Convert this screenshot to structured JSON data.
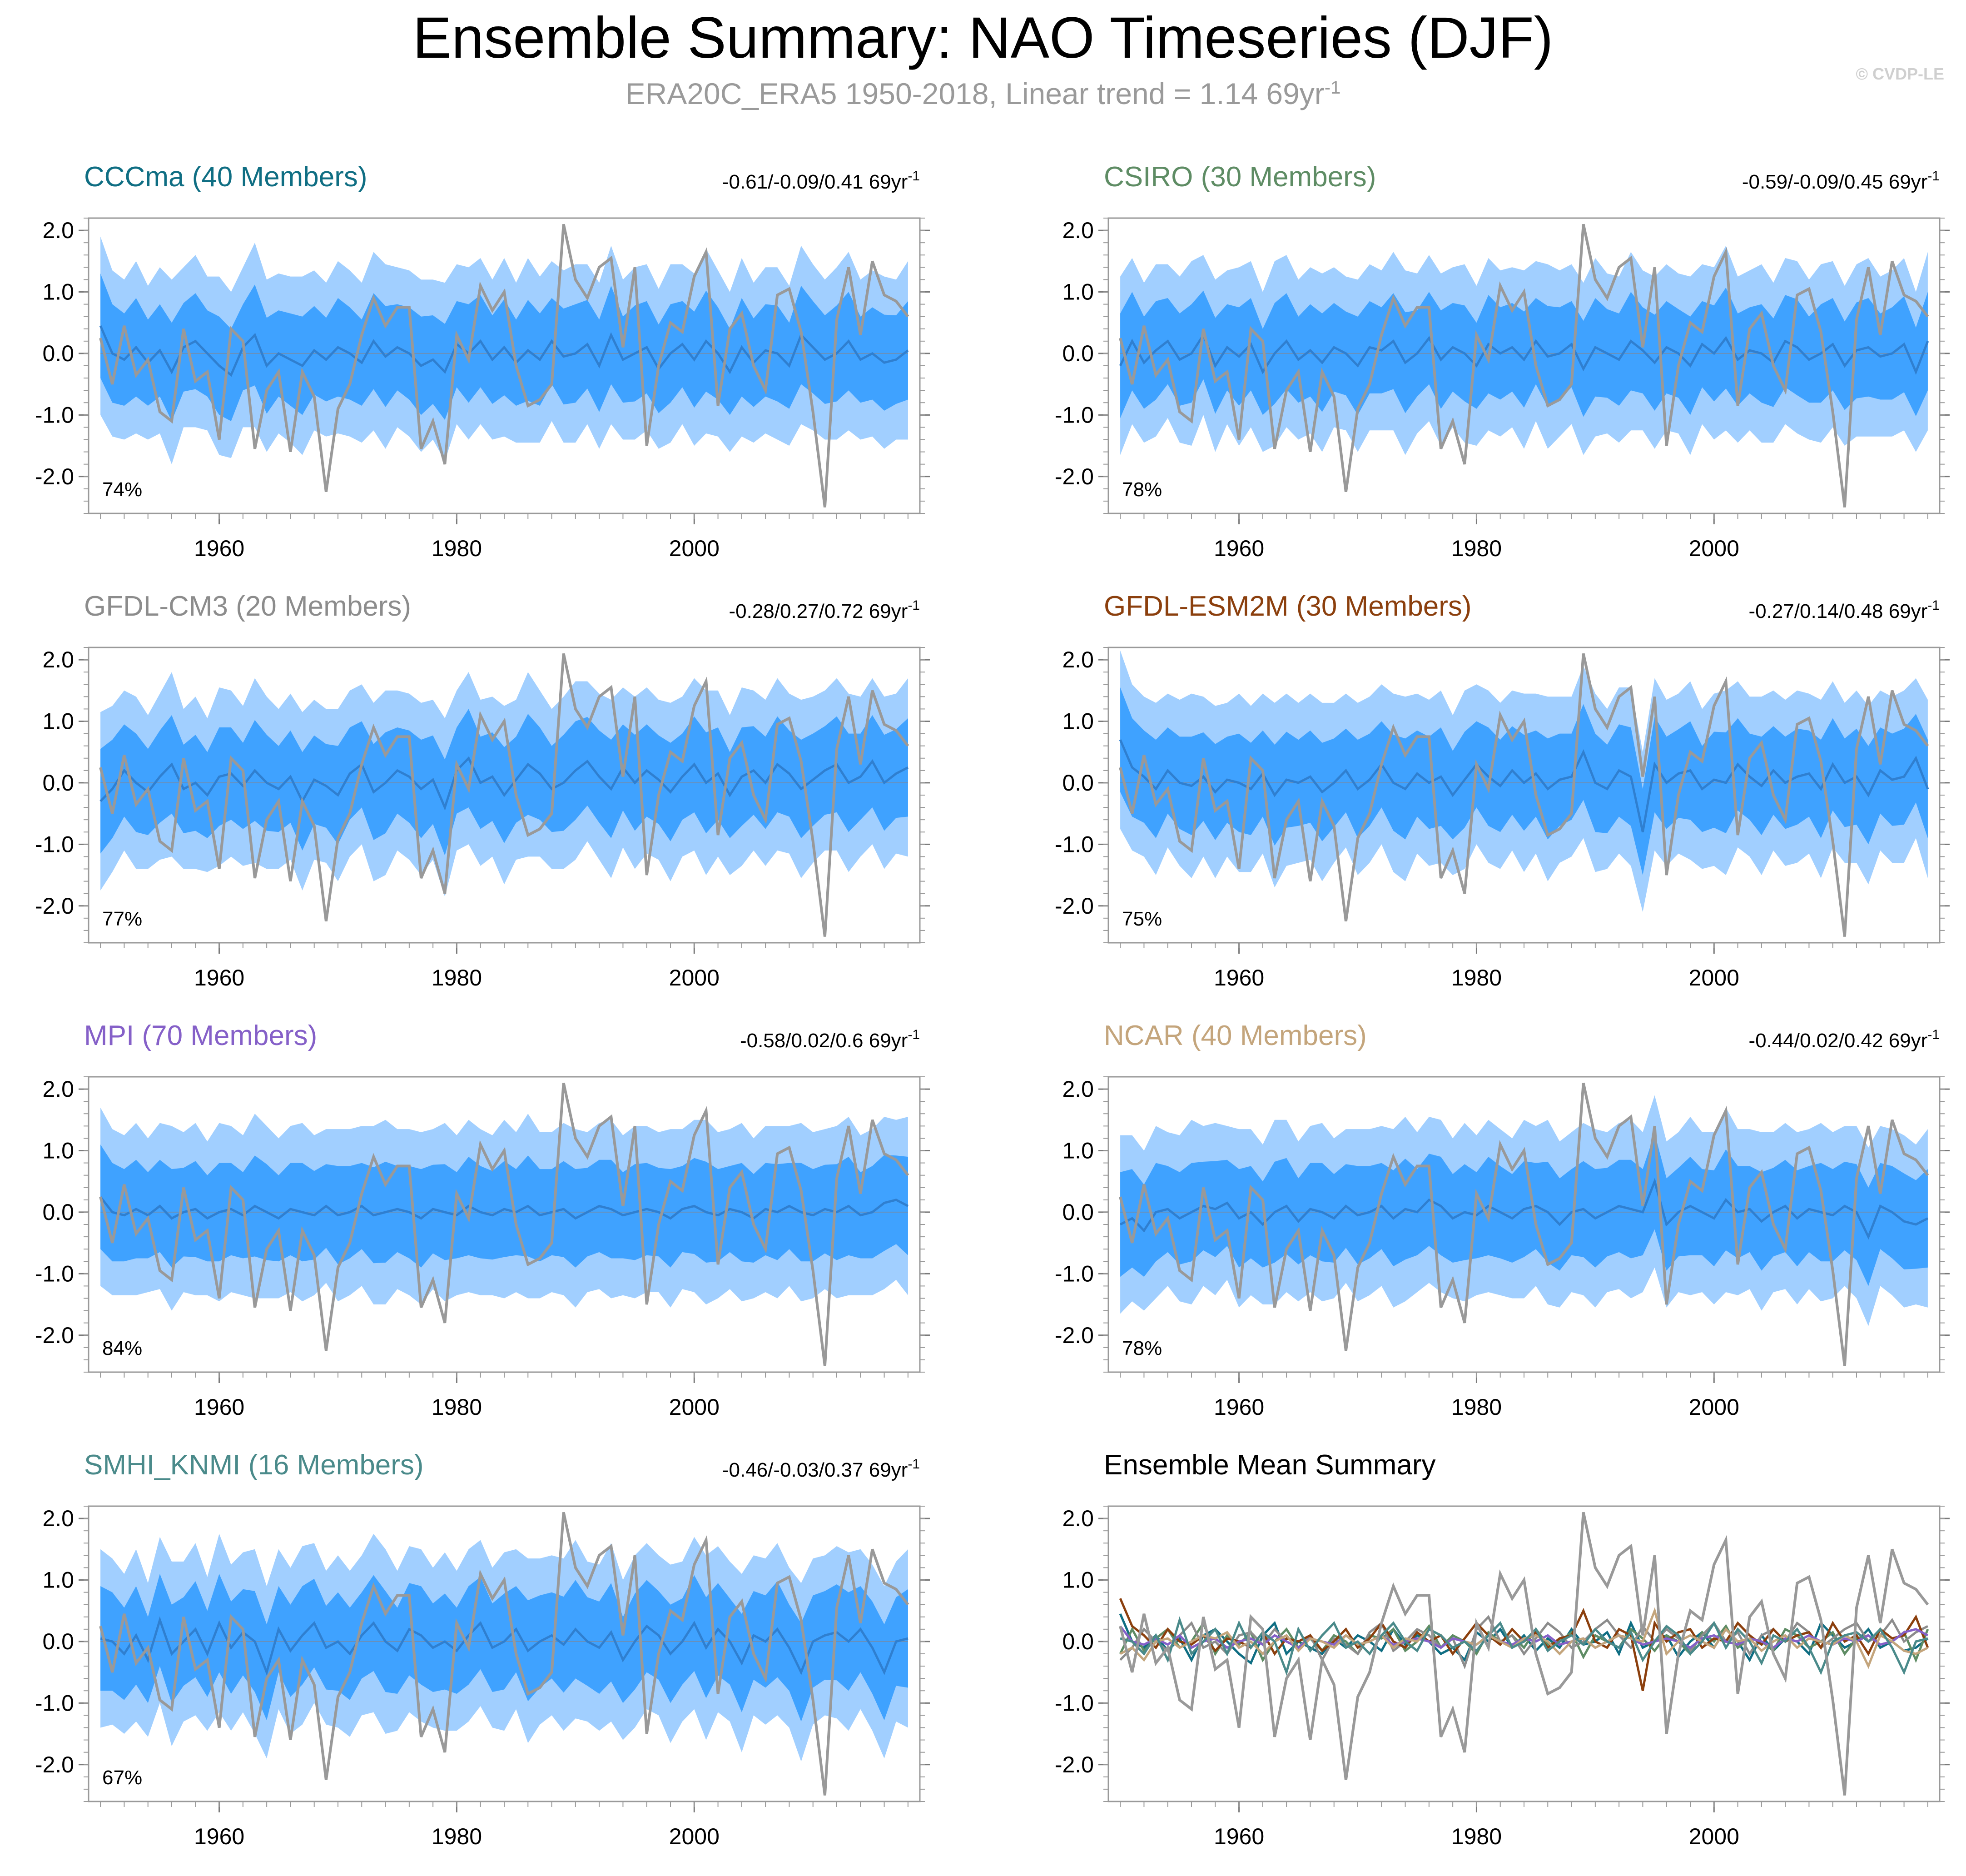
{
  "title": "Ensemble Summary: NAO Timeseries (DJF)",
  "subtitle": {
    "text": "ERA20C_ERA5 1950-2018, Linear trend = 1.14 69yr",
    "sup": "-1"
  },
  "watermark": "© CVDP-LE",
  "colors": {
    "inner_band": "#3fa2ff",
    "outer_band": "#a1cfff",
    "mean_line": "#2f7fd0",
    "obs_line": "#999999"
  },
  "chart_data": [
    {
      "type": "line",
      "title": "CCCma (40 Members)",
      "title_color": "#0f6e83",
      "stat": "-0.61/-0.09/0.41 69yr",
      "stat_sup": "-1",
      "percent": "74%",
      "xlim": [
        1949,
        2019
      ],
      "ylim": [
        -2.6,
        2.2
      ],
      "xticks": [
        1960,
        1980,
        2000
      ],
      "xtick_labels": [
        "1960",
        "1980",
        "2000"
      ],
      "yticks": [
        2.0,
        1.0,
        0.0,
        -1.0,
        -2.0
      ],
      "ytick_labels": [
        "2.0",
        "1.0",
        "0.0",
        "-1.0",
        "-2.0"
      ]
    },
    {
      "type": "line",
      "title": "CSIRO (30 Members)",
      "title_color": "#5e8c64",
      "stat": "-0.59/-0.09/0.45 69yr",
      "stat_sup": "-1",
      "percent": "78%",
      "xlim": [
        1949,
        2019
      ],
      "ylim": [
        -2.6,
        2.2
      ],
      "xticks": [
        1960,
        1980,
        2000
      ],
      "xtick_labels": [
        "1960",
        "1980",
        "2000"
      ],
      "yticks": [
        2.0,
        1.0,
        0.0,
        -1.0,
        -2.0
      ],
      "ytick_labels": [
        "2.0",
        "1.0",
        "0.0",
        "-1.0",
        "-2.0"
      ]
    },
    {
      "type": "line",
      "title": "GFDL-CM3 (20 Members)",
      "title_color": "#8c8c8c",
      "stat": "-0.28/0.27/0.72 69yr",
      "stat_sup": "-1",
      "percent": "77%",
      "xlim": [
        1949,
        2019
      ],
      "ylim": [
        -2.6,
        2.2
      ],
      "xticks": [
        1960,
        1980,
        2000
      ],
      "xtick_labels": [
        "1960",
        "1980",
        "2000"
      ],
      "yticks": [
        2.0,
        1.0,
        0.0,
        -1.0,
        -2.0
      ],
      "ytick_labels": [
        "2.0",
        "1.0",
        "0.0",
        "-1.0",
        "-2.0"
      ]
    },
    {
      "type": "line",
      "title": "GFDL-ESM2M (30 Members)",
      "title_color": "#8b3f0d",
      "stat": "-0.27/0.14/0.48 69yr",
      "stat_sup": "-1",
      "percent": "75%",
      "xlim": [
        1949,
        2019
      ],
      "ylim": [
        -2.6,
        2.2
      ],
      "xticks": [
        1960,
        1980,
        2000
      ],
      "xtick_labels": [
        "1960",
        "1980",
        "2000"
      ],
      "yticks": [
        2.0,
        1.0,
        0.0,
        -1.0,
        -2.0
      ],
      "ytick_labels": [
        "2.0",
        "1.0",
        "0.0",
        "-1.0",
        "-2.0"
      ]
    },
    {
      "type": "line",
      "title": "MPI (70 Members)",
      "title_color": "#8560c8",
      "stat": "-0.58/0.02/0.6 69yr",
      "stat_sup": "-1",
      "percent": "84%",
      "xlim": [
        1949,
        2019
      ],
      "ylim": [
        -2.6,
        2.2
      ],
      "xticks": [
        1960,
        1980,
        2000
      ],
      "xtick_labels": [
        "1960",
        "1980",
        "2000"
      ],
      "yticks": [
        2.0,
        1.0,
        0.0,
        -1.0,
        -2.0
      ],
      "ytick_labels": [
        "2.0",
        "1.0",
        "0.0",
        "-1.0",
        "-2.0"
      ]
    },
    {
      "type": "line",
      "title": "NCAR (40 Members)",
      "title_color": "#c4a57c",
      "stat": "-0.44/0.02/0.42 69yr",
      "stat_sup": "-1",
      "percent": "78%",
      "xlim": [
        1949,
        2019
      ],
      "ylim": [
        -2.6,
        2.2
      ],
      "xticks": [
        1960,
        1980,
        2000
      ],
      "xtick_labels": [
        "1960",
        "1980",
        "2000"
      ],
      "yticks": [
        2.0,
        1.0,
        0.0,
        -1.0,
        -2.0
      ],
      "ytick_labels": [
        "2.0",
        "1.0",
        "0.0",
        "-1.0",
        "-2.0"
      ]
    },
    {
      "type": "line",
      "title": "SMHI_KNMI (16 Members)",
      "title_color": "#4a8a8a",
      "stat": "-0.46/-0.03/0.37 69yr",
      "stat_sup": "-1",
      "percent": "67%",
      "xlim": [
        1949,
        2019
      ],
      "ylim": [
        -2.6,
        2.2
      ],
      "xticks": [
        1960,
        1980,
        2000
      ],
      "xtick_labels": [
        "1960",
        "1980",
        "2000"
      ],
      "yticks": [
        2.0,
        1.0,
        0.0,
        -1.0,
        -2.0
      ],
      "ytick_labels": [
        "2.0",
        "1.0",
        "0.0",
        "-1.0",
        "-2.0"
      ]
    },
    {
      "type": "line",
      "title": "Ensemble Mean Summary",
      "title_color": "#000000",
      "stat": "",
      "stat_sup": "",
      "percent": "",
      "xlim": [
        1949,
        2019
      ],
      "ylim": [
        -2.6,
        2.2
      ],
      "xticks": [
        1960,
        1980,
        2000
      ],
      "xtick_labels": [
        "1960",
        "1980",
        "2000"
      ],
      "yticks": [
        2.0,
        1.0,
        0.0,
        -1.0,
        -2.0
      ],
      "ytick_labels": [
        "2.0",
        "1.0",
        "0.0",
        "-1.0",
        "-2.0"
      ],
      "summary": true,
      "summary_colors": [
        "#0f6e83",
        "#5e8c64",
        "#8c8c8c",
        "#8b3f0d",
        "#8560c8",
        "#c4a57c",
        "#4a8a8a"
      ]
    }
  ],
  "observed": {
    "years": [
      1950,
      1951,
      1952,
      1953,
      1954,
      1955,
      1956,
      1957,
      1958,
      1959,
      1960,
      1961,
      1962,
      1963,
      1964,
      1965,
      1966,
      1967,
      1968,
      1969,
      1970,
      1971,
      1972,
      1973,
      1974,
      1975,
      1976,
      1977,
      1978,
      1979,
      1980,
      1981,
      1982,
      1983,
      1984,
      1985,
      1986,
      1987,
      1988,
      1989,
      1990,
      1991,
      1992,
      1993,
      1994,
      1995,
      1996,
      1997,
      1998,
      1999,
      2000,
      2001,
      2002,
      2003,
      2004,
      2005,
      2006,
      2007,
      2008,
      2009,
      2010,
      2011,
      2012,
      2013,
      2014,
      2015,
      2016,
      2017,
      2018
    ],
    "values": [
      0.25,
      -0.5,
      0.45,
      -0.35,
      -0.1,
      -0.95,
      -1.1,
      0.4,
      -0.45,
      -0.3,
      -1.4,
      0.4,
      0.2,
      -1.55,
      -0.6,
      -0.3,
      -1.6,
      -0.3,
      -0.7,
      -2.25,
      -0.9,
      -0.5,
      0.3,
      0.9,
      0.45,
      0.75,
      0.75,
      -1.55,
      -1.1,
      -1.8,
      0.3,
      -0.1,
      1.1,
      0.7,
      1.0,
      -0.2,
      -0.85,
      -0.75,
      -0.5,
      2.1,
      1.2,
      0.9,
      1.4,
      1.55,
      0.1,
      1.4,
      -1.5,
      -0.2,
      0.5,
      0.35,
      1.25,
      1.65,
      -0.85,
      0.4,
      0.65,
      -0.2,
      -0.6,
      0.95,
      1.05,
      0.35,
      -0.95,
      -2.5,
      0.55,
      1.4,
      0.3,
      1.5,
      0.95,
      0.85,
      0.6
    ]
  },
  "ensemble": {
    "mean": [
      [
        0.45,
        0.0,
        -0.1,
        0.1,
        -0.15,
        0.05,
        -0.3,
        0.1,
        0.2,
        0.0,
        -0.2,
        -0.35,
        0.1,
        0.3,
        -0.2,
        0.0,
        -0.1,
        -0.2,
        0.05,
        -0.1,
        0.1,
        0.0,
        -0.15,
        0.2,
        -0.05,
        0.1,
        0.0,
        -0.2,
        -0.1,
        -0.3,
        0.15,
        0.0,
        0.2,
        -0.1,
        0.1,
        -0.15,
        0.05,
        -0.1,
        0.2,
        -0.05,
        0.0,
        0.15,
        -0.2,
        0.3,
        -0.1,
        0.0,
        0.1,
        -0.25,
        0.0,
        0.15,
        -0.1,
        0.2,
        0.0,
        -0.3,
        0.1,
        -0.15,
        0.05,
        0.0,
        -0.2,
        0.3,
        0.1,
        -0.1,
        0.0,
        0.2,
        -0.1,
        0.0,
        -0.15,
        -0.1,
        0.05
      ],
      [
        -0.2,
        0.2,
        -0.15,
        0.05,
        0.2,
        -0.1,
        0.0,
        0.3,
        -0.2,
        0.1,
        -0.05,
        0.15,
        -0.3,
        0.0,
        0.2,
        -0.1,
        0.05,
        -0.15,
        0.1,
        0.0,
        -0.2,
        0.1,
        0.05,
        0.2,
        -0.15,
        0.0,
        0.25,
        -0.1,
        0.1,
        0.0,
        -0.2,
        0.15,
        0.0,
        0.1,
        -0.1,
        0.2,
        -0.05,
        0.0,
        0.15,
        -0.25,
        0.1,
        0.0,
        -0.1,
        0.2,
        0.05,
        -0.15,
        0.1,
        0.0,
        -0.2,
        0.15,
        0.0,
        0.25,
        -0.1,
        0.05,
        0.0,
        -0.15,
        0.2,
        0.1,
        -0.1,
        0.0,
        0.15,
        -0.2,
        0.05,
        0.1,
        -0.05,
        0.0,
        0.15,
        -0.3,
        0.2
      ],
      [
        -0.3,
        -0.1,
        0.2,
        0.0,
        -0.15,
        0.1,
        0.3,
        -0.1,
        0.0,
        -0.2,
        0.1,
        0.15,
        -0.05,
        0.2,
        0.0,
        -0.1,
        0.1,
        -0.3,
        0.05,
        -0.05,
        -0.2,
        0.15,
        0.3,
        -0.15,
        0.0,
        0.2,
        0.1,
        -0.1,
        0.05,
        -0.4,
        0.2,
        0.4,
        0.0,
        0.1,
        -0.2,
        0.05,
        0.3,
        0.15,
        -0.1,
        0.0,
        0.2,
        0.35,
        0.1,
        -0.1,
        0.25,
        0.0,
        0.2,
        0.05,
        -0.15,
        0.1,
        0.3,
        0.0,
        0.15,
        -0.2,
        0.1,
        0.2,
        0.0,
        0.3,
        0.15,
        -0.1,
        0.05,
        0.2,
        0.3,
        0.0,
        0.1,
        0.35,
        0.0,
        0.15,
        0.25
      ],
      [
        0.7,
        0.25,
        0.1,
        -0.1,
        0.2,
        0.0,
        -0.05,
        0.1,
        -0.15,
        0.05,
        0.0,
        -0.1,
        0.15,
        -0.2,
        0.05,
        0.0,
        0.1,
        -0.15,
        0.0,
        0.2,
        -0.1,
        0.05,
        0.3,
        0.0,
        -0.1,
        0.15,
        0.0,
        0.1,
        -0.2,
        0.05,
        0.3,
        0.1,
        -0.05,
        0.2,
        0.0,
        0.15,
        -0.1,
        0.05,
        0.1,
        0.5,
        0.0,
        -0.1,
        0.2,
        0.1,
        -0.8,
        0.3,
        0.0,
        0.15,
        0.2,
        -0.1,
        0.05,
        0.0,
        0.3,
        0.1,
        -0.05,
        0.2,
        0.0,
        0.1,
        0.15,
        -0.1,
        0.3,
        0.0,
        0.1,
        -0.2,
        0.2,
        0.05,
        0.1,
        0.4,
        -0.1
      ],
      [
        0.25,
        0.0,
        -0.05,
        0.05,
        -0.05,
        0.1,
        -0.1,
        0.0,
        0.05,
        -0.1,
        0.0,
        0.05,
        -0.05,
        0.1,
        0.0,
        -0.1,
        0.05,
        0.0,
        -0.05,
        0.1,
        -0.05,
        0.0,
        0.1,
        -0.05,
        0.0,
        0.05,
        0.0,
        -0.1,
        0.05,
        0.0,
        -0.05,
        0.1,
        0.0,
        -0.05,
        0.05,
        0.0,
        0.1,
        -0.05,
        0.0,
        0.05,
        -0.1,
        0.0,
        0.1,
        0.05,
        -0.05,
        0.0,
        0.05,
        0.0,
        -0.1,
        0.05,
        0.1,
        0.0,
        -0.05,
        0.05,
        0.0,
        -0.1,
        0.05,
        0.0,
        0.1,
        0.0,
        -0.05,
        0.05,
        0.0,
        0.1,
        -0.05,
        0.0,
        0.15,
        0.2,
        0.1
      ],
      [
        -0.2,
        -0.1,
        -0.3,
        0.0,
        0.05,
        -0.1,
        0.0,
        0.1,
        0.05,
        0.15,
        -0.1,
        0.0,
        -0.2,
        0.0,
        0.1,
        -0.15,
        0.05,
        0.0,
        -0.1,
        0.1,
        -0.05,
        0.0,
        0.1,
        -0.1,
        0.05,
        0.0,
        0.2,
        0.1,
        -0.1,
        0.0,
        -0.05,
        0.1,
        0.0,
        -0.1,
        0.05,
        0.1,
        0.0,
        -0.2,
        0.0,
        0.05,
        -0.1,
        0.0,
        0.1,
        0.05,
        0.0,
        0.5,
        -0.2,
        0.0,
        0.1,
        0.0,
        -0.1,
        0.2,
        0.0,
        0.05,
        -0.15,
        0.0,
        0.1,
        -0.1,
        0.05,
        0.0,
        -0.05,
        0.1,
        0.0,
        -0.4,
        0.1,
        0.0,
        -0.15,
        -0.2,
        -0.1
      ],
      [
        0.05,
        0.0,
        -0.2,
        0.1,
        -0.3,
        0.35,
        -0.2,
        0.0,
        0.2,
        -0.2,
        0.3,
        -0.1,
        0.15,
        0.0,
        -0.5,
        0.2,
        -0.15,
        0.1,
        0.3,
        -0.1,
        0.0,
        -0.2,
        0.1,
        0.3,
        0.0,
        -0.15,
        0.2,
        0.1,
        -0.1,
        0.0,
        -0.15,
        0.1,
        0.3,
        -0.1,
        0.0,
        0.2,
        -0.15,
        0.0,
        0.1,
        -0.05,
        0.2,
        0.0,
        -0.1,
        0.15,
        -0.3,
        0.0,
        0.25,
        0.1,
        -0.2,
        0.0,
        0.3,
        -0.1,
        0.2,
        0.0,
        -0.35,
        0.1,
        0.0,
        0.2,
        -0.1,
        -0.5,
        0.0,
        0.1,
        0.15,
        0.0,
        0.2,
        -0.1,
        -0.5,
        0.0,
        0.05
      ]
    ],
    "inner_spread": [
      0.85,
      0.8,
      0.75,
      0.8,
      0.7,
      0.75,
      0.8,
      0.72,
      0.78,
      0.7,
      0.8,
      0.75,
      0.7,
      0.82,
      0.78,
      0.7,
      0.75,
      0.8,
      0.72,
      0.68,
      0.8,
      0.75,
      0.7,
      0.78,
      0.82,
      0.7,
      0.75,
      0.8,
      0.72,
      0.78,
      0.7,
      0.8,
      0.75,
      0.72,
      0.78,
      0.7,
      0.82,
      0.75,
      0.7,
      0.78,
      0.8,
      0.72,
      0.75,
      0.8,
      0.7,
      0.78,
      0.75,
      0.72,
      0.8,
      0.7,
      0.78,
      0.82,
      0.75,
      0.7,
      0.8,
      0.72,
      0.75,
      0.78,
      0.7,
      0.8,
      0.75,
      0.72,
      0.78,
      0.8,
      0.7,
      0.75,
      0.78,
      0.72,
      0.8
    ],
    "outer_spread": [
      1.45,
      1.35,
      1.3,
      1.4,
      1.25,
      1.35,
      1.5,
      1.3,
      1.4,
      1.25,
      1.45,
      1.35,
      1.3,
      1.5,
      1.4,
      1.3,
      1.35,
      1.45,
      1.3,
      1.25,
      1.4,
      1.35,
      1.3,
      1.45,
      1.5,
      1.3,
      1.35,
      1.4,
      1.3,
      1.45,
      1.3,
      1.4,
      1.35,
      1.3,
      1.45,
      1.3,
      1.5,
      1.35,
      1.3,
      1.4,
      1.45,
      1.3,
      1.35,
      1.45,
      1.3,
      1.4,
      1.35,
      1.3,
      1.45,
      1.3,
      1.4,
      1.5,
      1.35,
      1.3,
      1.45,
      1.3,
      1.35,
      1.4,
      1.3,
      1.45,
      1.35,
      1.3,
      1.4,
      1.45,
      1.3,
      1.35,
      1.4,
      1.3,
      1.45
    ]
  }
}
